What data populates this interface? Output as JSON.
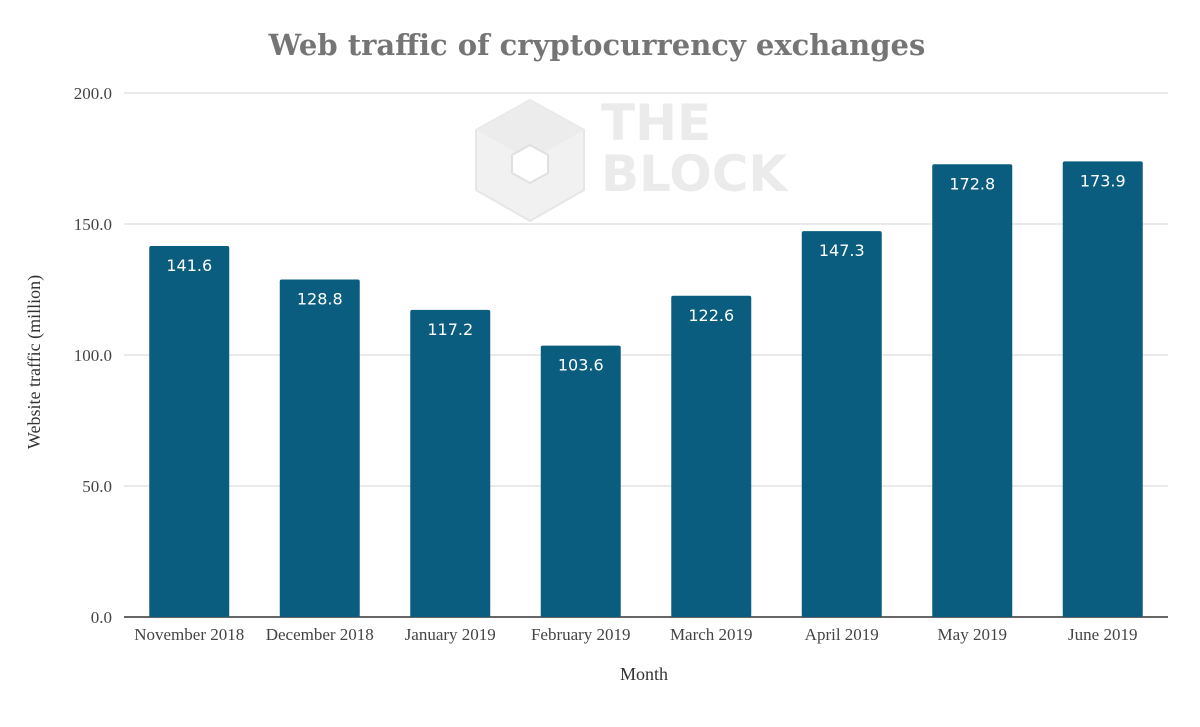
{
  "chart_data": {
    "type": "bar",
    "title": "Web traffic of cryptocurrency exchanges",
    "xlabel": "Month",
    "ylabel": "Website traffic (million)",
    "categories": [
      "November 2018",
      "December 2018",
      "January 2019",
      "February 2019",
      "March 2019",
      "April 2019",
      "May 2019",
      "June 2019"
    ],
    "values": [
      141.6,
      128.8,
      117.2,
      103.6,
      122.6,
      147.3,
      172.8,
      173.9
    ],
    "data_labels": [
      "141.6",
      "128.8",
      "117.2",
      "103.6",
      "122.6",
      "147.3",
      "172.8",
      "173.9"
    ],
    "ylim": [
      0,
      200
    ],
    "yticks": [
      0,
      50,
      100,
      150,
      200
    ],
    "ytick_labels": [
      "0.0",
      "50.0",
      "100.0",
      "150.0",
      "200.0"
    ],
    "grid": true,
    "legend": "none",
    "bar_color": "#0b5d80",
    "watermark": "THE BLOCK"
  }
}
